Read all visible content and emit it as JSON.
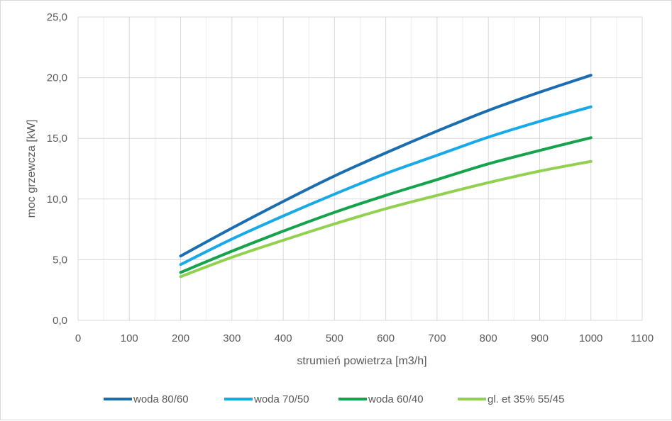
{
  "chart_data": {
    "type": "line",
    "title": "",
    "xlabel": "strumień powietrza [m3/h]",
    "ylabel": "moc grzewcza [kW]",
    "xlim": [
      0,
      1100
    ],
    "ylim": [
      0,
      25
    ],
    "x_ticks": [
      0,
      100,
      200,
      300,
      400,
      500,
      600,
      700,
      800,
      900,
      1000,
      1100
    ],
    "x_tick_labels": [
      "0",
      "100",
      "200",
      "300",
      "400",
      "500",
      "600",
      "700",
      "800",
      "900",
      "1000",
      "1100"
    ],
    "y_ticks": [
      0,
      5,
      10,
      15,
      20,
      25
    ],
    "y_tick_labels": [
      "0,0",
      "5,0",
      "10,0",
      "15,0",
      "20,0",
      "25,0"
    ],
    "x_minor_step": 50,
    "grid": true,
    "legend_position": "bottom",
    "x": [
      200,
      300,
      400,
      500,
      600,
      700,
      800,
      900,
      1000
    ],
    "series": [
      {
        "name": "woda 80/60",
        "color": "#1a6db1",
        "values": [
          5.3,
          7.6,
          9.8,
          11.9,
          13.8,
          15.6,
          17.3,
          18.8,
          20.2
        ]
      },
      {
        "name": "woda 70/50",
        "color": "#18a9e8",
        "values": [
          4.6,
          6.7,
          8.6,
          10.4,
          12.1,
          13.6,
          15.1,
          16.4,
          17.6
        ]
      },
      {
        "name": "woda 60/40",
        "color": "#15a34c",
        "values": [
          3.95,
          5.7,
          7.35,
          8.9,
          10.3,
          11.6,
          12.9,
          14.0,
          15.05
        ]
      },
      {
        "name": "gl. et 35% 55/45",
        "color": "#92d050",
        "values": [
          3.6,
          5.2,
          6.6,
          7.95,
          9.2,
          10.3,
          11.35,
          12.3,
          13.1
        ]
      }
    ]
  }
}
